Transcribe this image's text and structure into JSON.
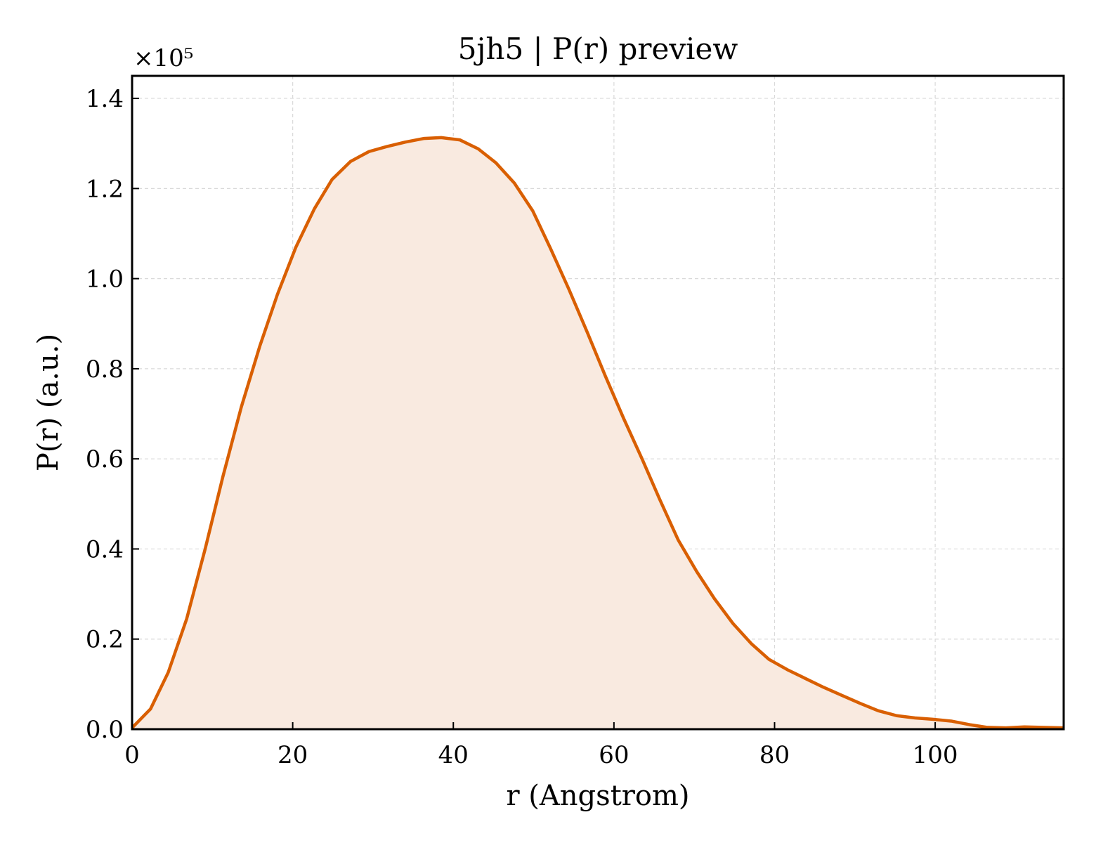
{
  "chart_data": {
    "type": "area",
    "title": "5jh5 | P(r) preview",
    "xlabel": "r (Angstrom)",
    "ylabel": "P(r) (a.u.)",
    "y_offset_label": "×10⁵",
    "xlim": [
      0,
      116
    ],
    "ylim": [
      0,
      1.45
    ],
    "xticks": [
      0,
      20,
      40,
      60,
      80,
      100
    ],
    "xtick_labels": [
      "0",
      "20",
      "40",
      "60",
      "80",
      "100"
    ],
    "yticks": [
      0.0,
      0.2,
      0.4,
      0.6,
      0.8,
      1.0,
      1.2,
      1.4
    ],
    "ytick_labels": [
      "0.0",
      "0.2",
      "0.4",
      "0.6",
      "0.8",
      "1.0",
      "1.2",
      "1.4"
    ],
    "grid": true,
    "line_color": "#d95f02",
    "fill_color": "#f9eae0",
    "series": [
      {
        "x": [
          0,
          2.3,
          4.5,
          6.8,
          9.1,
          11.3,
          13.6,
          15.9,
          18.1,
          20.4,
          22.7,
          24.9,
          27.2,
          29.5,
          31.7,
          34.0,
          36.3,
          38.5,
          40.8,
          43.1,
          45.3,
          47.6,
          49.9,
          52.1,
          54.4,
          56.7,
          58.9,
          61.2,
          63.5,
          65.7,
          68.0,
          70.3,
          72.5,
          74.8,
          77.1,
          79.3,
          81.6,
          83.9,
          86.1,
          88.4,
          90.7,
          92.9,
          95.2,
          97.5,
          99.7,
          102.0,
          104.3,
          106.5,
          108.8,
          111.1,
          113.3,
          116.0
        ],
        "y": [
          0.003,
          0.045,
          0.126,
          0.245,
          0.4,
          0.56,
          0.715,
          0.85,
          0.965,
          1.07,
          1.155,
          1.22,
          1.26,
          1.282,
          1.293,
          1.303,
          1.311,
          1.313,
          1.308,
          1.288,
          1.257,
          1.212,
          1.15,
          1.067,
          0.976,
          0.88,
          0.785,
          0.69,
          0.6,
          0.51,
          0.42,
          0.35,
          0.29,
          0.235,
          0.19,
          0.155,
          0.132,
          0.112,
          0.093,
          0.075,
          0.057,
          0.041,
          0.03,
          0.025,
          0.022,
          0.018,
          0.01,
          0.004,
          0.003,
          0.005,
          0.004,
          0.003
        ]
      }
    ]
  }
}
